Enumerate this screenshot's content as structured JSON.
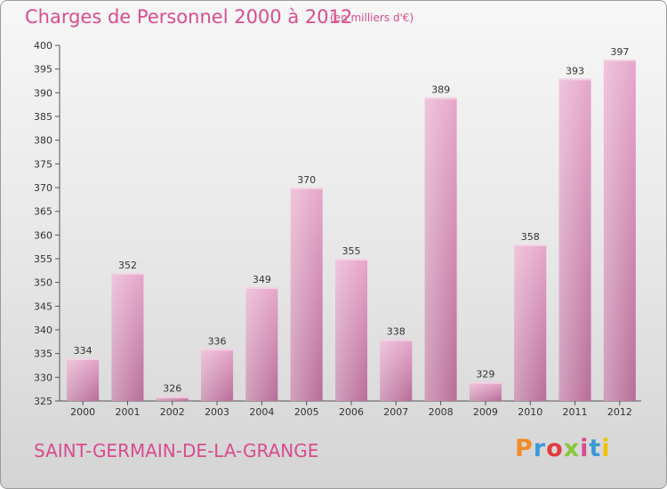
{
  "header": {
    "title": "Charges de Personnel 2000 à 2012",
    "subtitle": "(en milliers d'€)"
  },
  "footer": {
    "commune": "SAINT-GERMAIN-DE-LA-GRANGE",
    "logo_text": "Proxiti"
  },
  "colors": {
    "title": "#d94b8e",
    "bar": "#d986b4",
    "logo": [
      "#f28c28",
      "#3a9ad9",
      "#e23c3c",
      "#8cc63f",
      "#d94b8e",
      "#3a9ad9",
      "#f2c200"
    ]
  },
  "chart_data": {
    "type": "bar",
    "title": "Charges de Personnel 2000 à 2012",
    "subtitle": "(en milliers d'€)",
    "categories": [
      "2000",
      "2001",
      "2002",
      "2003",
      "2004",
      "2005",
      "2006",
      "2007",
      "2008",
      "2009",
      "2010",
      "2011",
      "2012"
    ],
    "values": [
      334,
      352,
      326,
      336,
      349,
      370,
      355,
      338,
      389,
      329,
      358,
      393,
      397
    ],
    "ylim": [
      325,
      400
    ],
    "yticks": [
      325,
      330,
      335,
      340,
      345,
      350,
      355,
      360,
      365,
      370,
      375,
      380,
      385,
      390,
      395,
      400
    ],
    "xlabel": "",
    "ylabel": "",
    "grid": false,
    "legend": "none"
  }
}
